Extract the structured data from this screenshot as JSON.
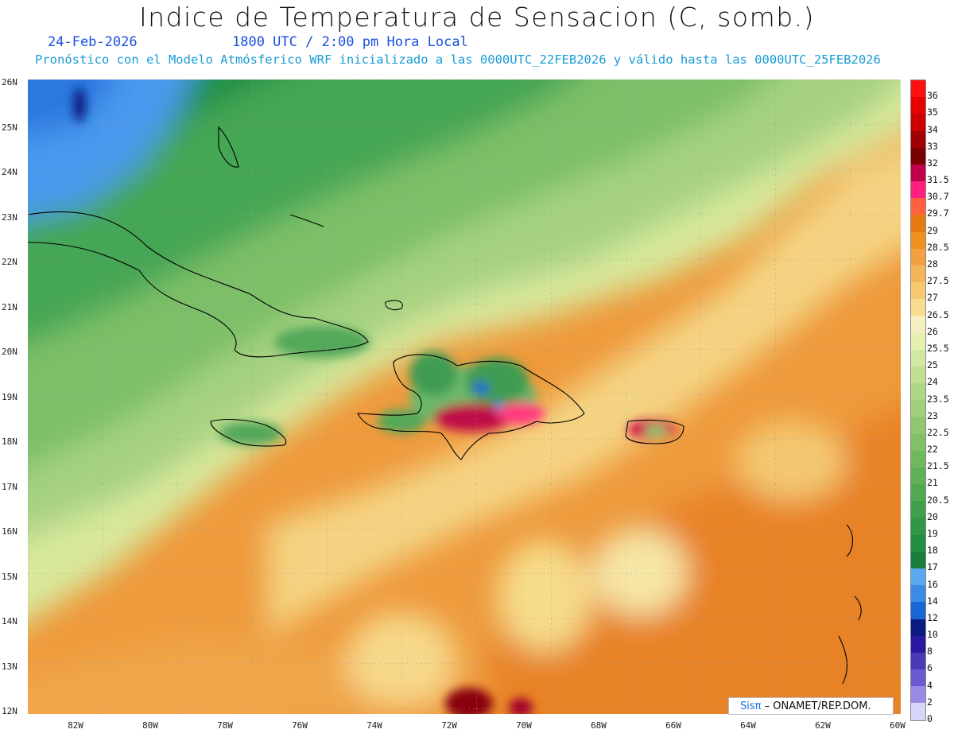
{
  "title": "Indice de Temperatura de Sensacion (C, somb.)",
  "date": "24-Feb-2026",
  "time": "1800 UTC / 2:00 pm Hora Local",
  "forecast_line": "Pronóstico con el Modelo Atmósferico WRF inicializado a las 0000UTC_22FEB2026 y válido hasta las  0000UTC_25FEB2026",
  "lat_labels": [
    "26N",
    "25N",
    "24N",
    "23N",
    "22N",
    "21N",
    "20N",
    "19N",
    "18N",
    "17N",
    "16N",
    "15N",
    "14N",
    "13N",
    "12N"
  ],
  "lon_labels": [
    "82W",
    "80W",
    "78W",
    "76W",
    "74W",
    "72W",
    "70W",
    "68W",
    "66W",
    "64W",
    "62W",
    "60W"
  ],
  "colorbar": {
    "labels": [
      "36",
      "35",
      "34",
      "33",
      "32",
      "31.5",
      "30.7",
      "29.7",
      "29",
      "28.5",
      "28",
      "27.5",
      "27",
      "26.5",
      "26",
      "25.5",
      "25",
      "24",
      "23.5",
      "23",
      "22.5",
      "22",
      "21.5",
      "21",
      "20.5",
      "20",
      "19",
      "18",
      "17",
      "16",
      "14",
      "12",
      "10",
      "8",
      "6",
      "4",
      "2",
      "0"
    ],
    "colors": [
      "#ff1010",
      "#e60000",
      "#cc0000",
      "#a00000",
      "#7a0000",
      "#c0004a",
      "#ff2080",
      "#ff6040",
      "#e67a10",
      "#f0901e",
      "#f2a040",
      "#f4b55a",
      "#f6c870",
      "#f8dc90",
      "#f6f0c0",
      "#e6f0b0",
      "#d0e8a0",
      "#c0e090",
      "#b0d884",
      "#a0d07a",
      "#90c870",
      "#80c066",
      "#70b85e",
      "#60b056",
      "#50a850",
      "#40a04a",
      "#309844",
      "#209040",
      "#1a7e3a",
      "#5aa8f0",
      "#3a8ae6",
      "#1a66d6",
      "#0a1a80",
      "#2a1aa0",
      "#4a3ab8",
      "#6a5ad0",
      "#9a8ae6",
      "#d6d6f8"
    ]
  },
  "credit": {
    "brand": "Sisπ",
    "org": " – ONAMET/REP.DOM."
  }
}
